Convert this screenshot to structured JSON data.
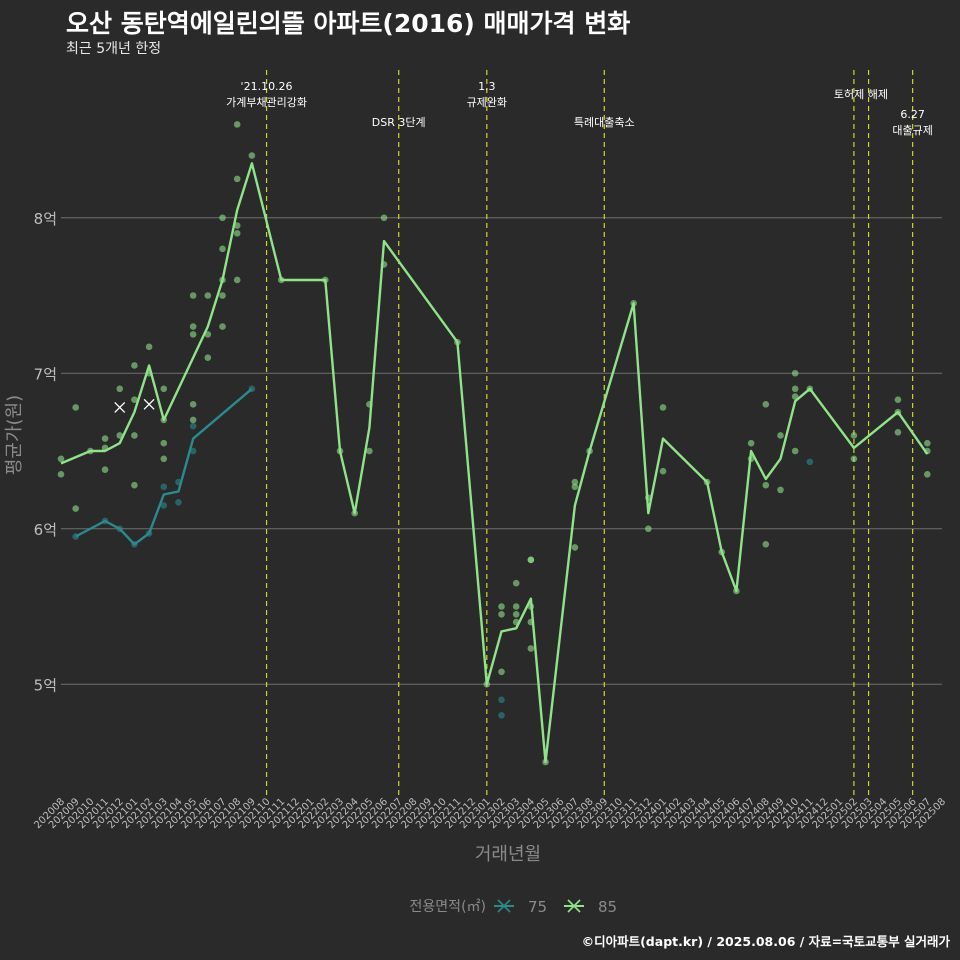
{
  "title": "오산 동탄역에일린의뜰 아파트(2016) 매매가격 변화",
  "subtitle": "최근 5개년 한정",
  "caption": "©디아파트(dapt.kr) / 2025.08.06 / 자료=국토교통부 실거래가",
  "colors": {
    "background": "#2b2a2b",
    "grid": "#6e6e6e",
    "series_75": "#2a8a8e",
    "series_85": "#8fe388",
    "vline": "#cfd62a",
    "axis_text": "#bdbdbd"
  },
  "chart_data": {
    "type": "line",
    "xlabel": "거래년월",
    "ylabel": "평균가(원)",
    "ylim": [
      4.3,
      8.6
    ],
    "yticks": [
      5,
      6,
      7,
      8
    ],
    "ytick_labels": [
      "5억",
      "6억",
      "7억",
      "8억"
    ],
    "categories": [
      "202008",
      "202009",
      "202010",
      "202011",
      "202012",
      "202101",
      "202102",
      "202103",
      "202104",
      "202105",
      "202106",
      "202107",
      "202108",
      "202109",
      "202110",
      "202111",
      "202112",
      "202201",
      "202202",
      "202203",
      "202204",
      "202205",
      "202206",
      "202207",
      "202208",
      "202209",
      "202210",
      "202211",
      "202212",
      "202301",
      "202302",
      "202303",
      "202304",
      "202305",
      "202306",
      "202307",
      "202308",
      "202309",
      "202310",
      "202311",
      "202312",
      "202401",
      "202402",
      "202403",
      "202404",
      "202405",
      "202406",
      "202407",
      "202408",
      "202409",
      "202410",
      "202411",
      "202412",
      "202501",
      "202502",
      "202503",
      "202504",
      "202505",
      "202506",
      "202507",
      "202508"
    ],
    "legend_title": "전용면적(㎡)",
    "legend_position": "bottom",
    "series": [
      {
        "name": "75",
        "color": "#2a8a8e",
        "line": [
          [
            "202009",
            5.95
          ],
          [
            "202011",
            6.05
          ],
          [
            "202012",
            6.0
          ],
          [
            "202101",
            5.9
          ],
          [
            "202102",
            5.97
          ],
          [
            "202103",
            6.22
          ],
          [
            "202104",
            6.24
          ],
          [
            "202105",
            6.58
          ],
          [
            "202109",
            6.9
          ]
        ],
        "points": [
          [
            "202009",
            5.95
          ],
          [
            "202011",
            6.05
          ],
          [
            "202012",
            6.0
          ],
          [
            "202101",
            5.9
          ],
          [
            "202102",
            5.97
          ],
          [
            "202103",
            6.27
          ],
          [
            "202103",
            6.15
          ],
          [
            "202104",
            6.3
          ],
          [
            "202104",
            6.17
          ],
          [
            "202105",
            6.66
          ],
          [
            "202105",
            6.5
          ],
          [
            "202109",
            6.9
          ],
          [
            "202302",
            4.9
          ],
          [
            "202302",
            4.8
          ],
          [
            "202411",
            6.43
          ]
        ],
        "cross_points": [
          [
            "202012",
            6.78
          ]
        ]
      },
      {
        "name": "85",
        "color": "#8fe388",
        "line": [
          [
            "202008",
            6.42
          ],
          [
            "202010",
            6.5
          ],
          [
            "202011",
            6.5
          ],
          [
            "202012",
            6.55
          ],
          [
            "202101",
            6.75
          ],
          [
            "202102",
            7.05
          ],
          [
            "202103",
            6.7
          ],
          [
            "202106",
            7.3
          ],
          [
            "202107",
            7.6
          ],
          [
            "202108",
            8.05
          ],
          [
            "202109",
            8.35
          ],
          [
            "202111",
            7.6
          ],
          [
            "202202",
            7.6
          ],
          [
            "202203",
            6.5
          ],
          [
            "202204",
            6.1
          ],
          [
            "202205",
            6.65
          ],
          [
            "202206",
            7.85
          ],
          [
            "202211",
            7.2
          ],
          [
            "202301",
            5.0
          ],
          [
            "202302",
            5.34
          ],
          [
            "202303",
            5.36
          ],
          [
            "202304",
            5.55
          ],
          [
            "202305",
            4.5
          ],
          [
            "202307",
            6.15
          ],
          [
            "202308",
            6.5
          ],
          [
            "202311",
            7.45
          ],
          [
            "202312",
            6.1
          ],
          [
            "202401",
            6.58
          ],
          [
            "202404",
            6.3
          ],
          [
            "202405",
            5.85
          ],
          [
            "202406",
            5.6
          ],
          [
            "202407",
            6.5
          ],
          [
            "202408",
            6.32
          ],
          [
            "202409",
            6.45
          ],
          [
            "202410",
            6.82
          ],
          [
            "202411",
            6.9
          ],
          [
            "202502",
            6.52
          ],
          [
            "202505",
            6.75
          ],
          [
            "202507",
            6.48
          ]
        ],
        "points": [
          [
            "202008",
            6.45
          ],
          [
            "202008",
            6.35
          ],
          [
            "202009",
            6.78
          ],
          [
            "202009",
            6.13
          ],
          [
            "202010",
            6.5
          ],
          [
            "202011",
            6.58
          ],
          [
            "202011",
            6.38
          ],
          [
            "202011",
            6.52
          ],
          [
            "202012",
            6.9
          ],
          [
            "202012",
            6.6
          ],
          [
            "202101",
            7.05
          ],
          [
            "202101",
            6.83
          ],
          [
            "202101",
            6.6
          ],
          [
            "202101",
            6.28
          ],
          [
            "202102",
            7.17
          ],
          [
            "202102",
            7.0
          ],
          [
            "202103",
            6.9
          ],
          [
            "202103",
            6.55
          ],
          [
            "202103",
            6.45
          ],
          [
            "202103",
            6.7
          ],
          [
            "202105",
            7.5
          ],
          [
            "202105",
            7.3
          ],
          [
            "202105",
            7.25
          ],
          [
            "202105",
            6.8
          ],
          [
            "202105",
            6.7
          ],
          [
            "202106",
            7.5
          ],
          [
            "202106",
            7.25
          ],
          [
            "202106",
            7.1
          ],
          [
            "202107",
            8.0
          ],
          [
            "202107",
            7.8
          ],
          [
            "202107",
            7.6
          ],
          [
            "202107",
            7.5
          ],
          [
            "202107",
            7.3
          ],
          [
            "202108",
            8.6
          ],
          [
            "202108",
            8.25
          ],
          [
            "202108",
            7.95
          ],
          [
            "202108",
            7.9
          ],
          [
            "202108",
            7.6
          ],
          [
            "202109",
            8.4
          ],
          [
            "202111",
            7.6
          ],
          [
            "202202",
            7.6
          ],
          [
            "202203",
            6.5
          ],
          [
            "202204",
            6.1
          ],
          [
            "202205",
            6.8
          ],
          [
            "202205",
            6.5
          ],
          [
            "202206",
            8.0
          ],
          [
            "202206",
            7.7
          ],
          [
            "202211",
            7.2
          ],
          [
            "202301",
            5.0
          ],
          [
            "202302",
            5.5
          ],
          [
            "202302",
            5.45
          ],
          [
            "202302",
            5.08
          ],
          [
            "202303",
            5.65
          ],
          [
            "202303",
            5.5
          ],
          [
            "202303",
            5.45
          ],
          [
            "202303",
            5.4
          ],
          [
            "202304",
            5.8
          ],
          [
            "202304",
            5.8
          ],
          [
            "202304",
            5.5
          ],
          [
            "202304",
            5.4
          ],
          [
            "202304",
            5.23
          ],
          [
            "202305",
            4.5
          ],
          [
            "202307",
            6.3
          ],
          [
            "202307",
            6.27
          ],
          [
            "202307",
            5.88
          ],
          [
            "202308",
            6.5
          ],
          [
            "202311",
            7.45
          ],
          [
            "202312",
            6.2
          ],
          [
            "202312",
            6.0
          ],
          [
            "202401",
            6.78
          ],
          [
            "202401",
            6.37
          ],
          [
            "202404",
            6.3
          ],
          [
            "202405",
            5.85
          ],
          [
            "202406",
            5.6
          ],
          [
            "202407",
            6.55
          ],
          [
            "202407",
            6.45
          ],
          [
            "202408",
            6.8
          ],
          [
            "202408",
            6.28
          ],
          [
            "202408",
            5.9
          ],
          [
            "202409",
            6.6
          ],
          [
            "202409",
            6.25
          ],
          [
            "202410",
            7.0
          ],
          [
            "202410",
            6.9
          ],
          [
            "202410",
            6.85
          ],
          [
            "202410",
            6.5
          ],
          [
            "202411",
            6.9
          ],
          [
            "202502",
            6.6
          ],
          [
            "202502",
            6.45
          ],
          [
            "202505",
            6.83
          ],
          [
            "202505",
            6.75
          ],
          [
            "202505",
            6.62
          ],
          [
            "202507",
            6.55
          ],
          [
            "202507",
            6.5
          ],
          [
            "202507",
            6.35
          ]
        ],
        "cross_points": [
          [
            "202102",
            6.8
          ]
        ]
      }
    ],
    "events": [
      {
        "x": "202110",
        "label": "'21.10.26\n가계부채관리강화"
      },
      {
        "x": "202207",
        "label": "DSR 3단계"
      },
      {
        "x": "202301",
        "label": "1.3\n규제완화"
      },
      {
        "x": "202309",
        "label": "특례대출축소"
      },
      {
        "x": "202502",
        "label": "토허제 해제"
      },
      {
        "x": "202503",
        "label": ""
      },
      {
        "x": "202506",
        "label": "6.27\n대출규제"
      }
    ]
  }
}
